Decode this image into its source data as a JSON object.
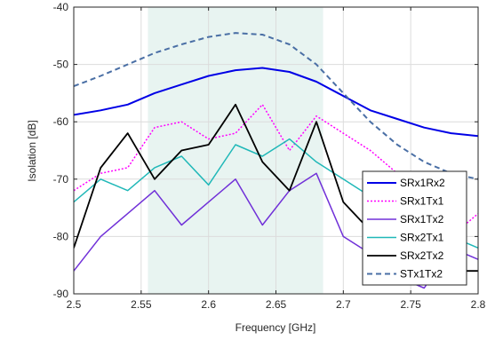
{
  "chart_data": {
    "type": "line",
    "title": "",
    "xlabel": "Frequency [GHz]",
    "ylabel": "Isolation [dB]",
    "xlim": [
      2.5,
      2.8
    ],
    "ylim": [
      -90,
      -40
    ],
    "xticks": [
      2.5,
      2.55,
      2.6,
      2.65,
      2.7,
      2.75,
      2.8
    ],
    "xtick_labels": [
      "2.5",
      "2.55",
      "2.6",
      "2.65",
      "2.7",
      "2.75",
      "2.8"
    ],
    "yticks": [
      -90,
      -80,
      -70,
      -60,
      -50,
      -40
    ],
    "ytick_labels": [
      "-90",
      "-80",
      "-70",
      "-60",
      "-50",
      "-40"
    ],
    "grid": true,
    "legend_position": "bottom-right",
    "shaded_band": {
      "x": [
        2.555,
        2.685
      ],
      "color": "#e8f4f1"
    },
    "series": [
      {
        "name": "SRx1Rx2",
        "color": "#0000e6",
        "style": "solid",
        "width": 2.0,
        "x": [
          2.5,
          2.52,
          2.54,
          2.56,
          2.58,
          2.6,
          2.62,
          2.64,
          2.66,
          2.68,
          2.7,
          2.72,
          2.74,
          2.76,
          2.78,
          2.8
        ],
        "y": [
          -58.8,
          -58,
          -57,
          -55,
          -53.5,
          -52,
          -51,
          -50.6,
          -51.3,
          -53,
          -55.5,
          -58,
          -59.5,
          -61,
          -62,
          -62.5
        ]
      },
      {
        "name": "SRx1Tx1",
        "color": "#ff00ff",
        "style": "dotted",
        "width": 1.5,
        "x": [
          2.5,
          2.52,
          2.54,
          2.56,
          2.58,
          2.6,
          2.62,
          2.64,
          2.66,
          2.68,
          2.7,
          2.72,
          2.74,
          2.76,
          2.78,
          2.8
        ],
        "y": [
          -72,
          -69,
          -68,
          -61,
          -60,
          -63,
          -62,
          -57,
          -65,
          -59,
          -62,
          -65,
          -69,
          -72,
          -80,
          -76
        ]
      },
      {
        "name": "SRx1Tx2",
        "color": "#7030d8",
        "style": "solid",
        "width": 1.5,
        "x": [
          2.5,
          2.52,
          2.54,
          2.56,
          2.58,
          2.6,
          2.62,
          2.64,
          2.66,
          2.68,
          2.7,
          2.72,
          2.74,
          2.76,
          2.78,
          2.8
        ],
        "y": [
          -86,
          -80,
          -76,
          -72,
          -78,
          -74,
          -70,
          -78,
          -72,
          -69,
          -80,
          -83,
          -87,
          -89,
          -82,
          -84
        ]
      },
      {
        "name": "SRx2Tx1",
        "color": "#20b8b8",
        "style": "solid",
        "width": 1.5,
        "x": [
          2.5,
          2.52,
          2.54,
          2.56,
          2.58,
          2.6,
          2.62,
          2.64,
          2.66,
          2.68,
          2.7,
          2.72,
          2.74,
          2.76,
          2.78,
          2.8
        ],
        "y": [
          -74,
          -70,
          -72,
          -68,
          -66,
          -71,
          -64,
          -66,
          -63,
          -67,
          -70,
          -73,
          -75,
          -78,
          -80,
          -82
        ]
      },
      {
        "name": "SRx2Tx2",
        "color": "#000000",
        "style": "solid",
        "width": 1.8,
        "x": [
          2.5,
          2.52,
          2.54,
          2.56,
          2.58,
          2.6,
          2.62,
          2.64,
          2.66,
          2.68,
          2.7,
          2.72,
          2.74,
          2.76,
          2.78,
          2.8
        ],
        "y": [
          -82,
          -68,
          -62,
          -70,
          -65,
          -64,
          -57,
          -67,
          -72,
          -60,
          -74,
          -79,
          -82,
          -84,
          -86,
          -86
        ]
      },
      {
        "name": "STx1Tx2",
        "color": "#4a6fa5",
        "style": "dashed",
        "width": 2.0,
        "x": [
          2.5,
          2.52,
          2.54,
          2.56,
          2.58,
          2.6,
          2.62,
          2.64,
          2.66,
          2.68,
          2.7,
          2.72,
          2.74,
          2.76,
          2.78,
          2.8
        ],
        "y": [
          -53.8,
          -52,
          -50,
          -48,
          -46.5,
          -45.2,
          -44.5,
          -44.8,
          -46.5,
          -50,
          -55,
          -60,
          -64,
          -67,
          -69,
          -70
        ]
      }
    ]
  }
}
